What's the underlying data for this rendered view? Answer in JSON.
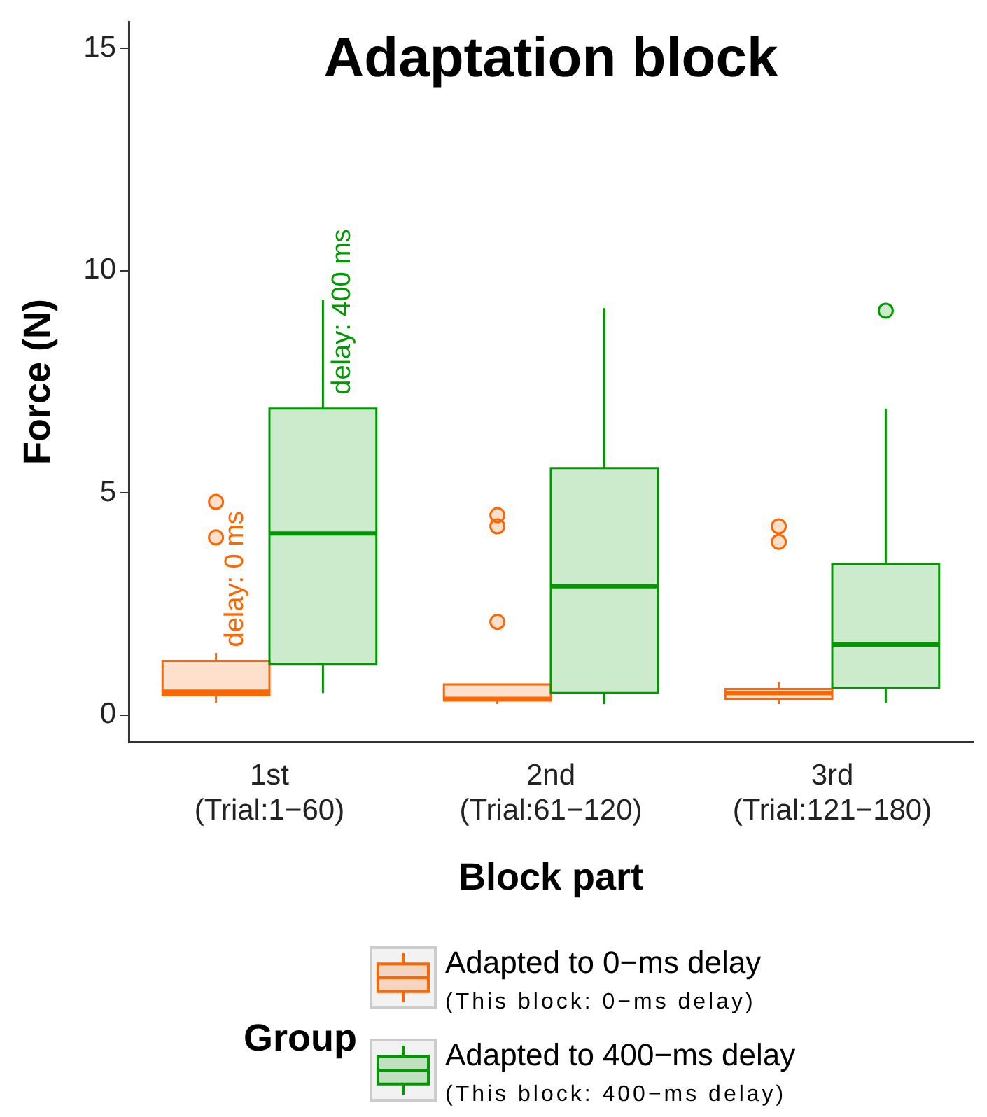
{
  "chart_data": {
    "type": "box",
    "title": "Adaptation block",
    "xlabel": "Block part",
    "ylabel": "Force (N)",
    "legend_title": "Group",
    "categories": [
      "1st\n(Trial:1−60)",
      "2nd\n(Trial:61−120)",
      "3rd\n(Trial:121−180)"
    ],
    "series": [
      {
        "name": "Adapted to 0−ms delay\n(This block: 0−ms delay)",
        "color": "#ff6600",
        "boxes": [
          {
            "low": 0.28,
            "q1": 0.45,
            "median": 0.53,
            "q3": 1.22,
            "high": 1.4,
            "outliers": [
              4.8,
              4.0
            ]
          },
          {
            "low": 0.25,
            "q1": 0.33,
            "median": 0.37,
            "q3": 0.69,
            "high": 0.69,
            "outliers": [
              4.5,
              4.25,
              2.1
            ]
          },
          {
            "low": 0.25,
            "q1": 0.37,
            "median": 0.5,
            "q3": 0.59,
            "high": 0.75,
            "outliers": [
              4.25,
              3.9
            ]
          }
        ]
      },
      {
        "name": "Adapted to 400−ms delay\n(This block: 400−ms delay)",
        "color": "#009900",
        "boxes": [
          {
            "low": 0.5,
            "q1": 1.15,
            "median": 4.09,
            "q3": 6.9,
            "high": 9.35
          },
          {
            "low": 0.25,
            "q1": 0.5,
            "median": 2.9,
            "q3": 5.56,
            "high": 9.16
          },
          {
            "low": 0.28,
            "q1": 0.62,
            "median": 1.59,
            "q3": 3.4,
            "high": 6.9,
            "outliers": [
              9.1
            ]
          }
        ]
      }
    ],
    "annotations": [
      "delay: 0 ms",
      "delay: 400 ms"
    ],
    "ylim": [
      -0.6,
      15.6
    ],
    "yticks": [
      0,
      5,
      10,
      15
    ],
    "grid": false,
    "legend": "bottom",
    "marker": "circle"
  }
}
